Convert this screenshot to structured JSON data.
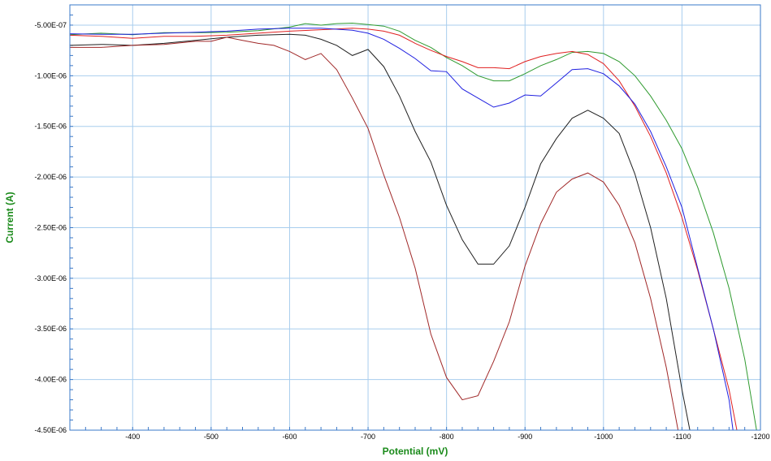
{
  "chart_data": {
    "type": "line",
    "xlabel": "Potential (mV)",
    "ylabel": "Current (A)",
    "xlim": [
      -320,
      -1200
    ],
    "ylim": [
      -4.5e-06,
      -3e-07
    ],
    "grid": true,
    "axis_title_color": "#1a8a1a",
    "x_ticks": [
      {
        "value": -400,
        "label": "-400"
      },
      {
        "value": -500,
        "label": "-500"
      },
      {
        "value": -600,
        "label": "-600"
      },
      {
        "value": -700,
        "label": "-700"
      },
      {
        "value": -800,
        "label": "-800"
      },
      {
        "value": -900,
        "label": "-900"
      },
      {
        "value": -1000,
        "label": "-1000"
      },
      {
        "value": -1100,
        "label": "-1100"
      },
      {
        "value": -1200,
        "label": "-1200"
      }
    ],
    "y_ticks": [
      {
        "value": -5e-07,
        "label": "-5.00E-07"
      },
      {
        "value": -1e-06,
        "label": "-1.00E-06"
      },
      {
        "value": -1.5e-06,
        "label": "-1.50E-06"
      },
      {
        "value": -2e-06,
        "label": "-2.00E-06"
      },
      {
        "value": -2.5e-06,
        "label": "-2.50E-06"
      },
      {
        "value": -3e-06,
        "label": "-3.00E-06"
      },
      {
        "value": -3.5e-06,
        "label": "-3.50E-06"
      },
      {
        "value": -4e-06,
        "label": "-4.00E-06"
      },
      {
        "value": -4.5e-06,
        "label": "-4.50E-06"
      }
    ],
    "series": [
      {
        "color": "#2e9a2e",
        "points": [
          [
            -320,
            -5.95e-07
          ],
          [
            -360,
            -5.8e-07
          ],
          [
            -400,
            -5.95e-07
          ],
          [
            -440,
            -5.75e-07
          ],
          [
            -480,
            -5.75e-07
          ],
          [
            -520,
            -5.7e-07
          ],
          [
            -560,
            -5.55e-07
          ],
          [
            -600,
            -5.2e-07
          ],
          [
            -620,
            -4.85e-07
          ],
          [
            -640,
            -5e-07
          ],
          [
            -660,
            -4.85e-07
          ],
          [
            -680,
            -4.8e-07
          ],
          [
            -700,
            -4.95e-07
          ],
          [
            -720,
            -5.1e-07
          ],
          [
            -740,
            -5.6e-07
          ],
          [
            -760,
            -6.5e-07
          ],
          [
            -780,
            -7.2e-07
          ],
          [
            -800,
            -8.2e-07
          ],
          [
            -820,
            -9e-07
          ],
          [
            -840,
            -1e-06
          ],
          [
            -860,
            -1.05e-06
          ],
          [
            -880,
            -1.05e-06
          ],
          [
            -900,
            -9.8e-07
          ],
          [
            -920,
            -9e-07
          ],
          [
            -940,
            -8.4e-07
          ],
          [
            -960,
            -7.7e-07
          ],
          [
            -980,
            -7.6e-07
          ],
          [
            -1000,
            -7.8e-07
          ],
          [
            -1020,
            -8.6e-07
          ],
          [
            -1040,
            -1e-06
          ],
          [
            -1060,
            -1.2e-06
          ],
          [
            -1080,
            -1.44e-06
          ],
          [
            -1100,
            -1.72e-06
          ],
          [
            -1120,
            -2.1e-06
          ],
          [
            -1140,
            -2.55e-06
          ],
          [
            -1160,
            -3.1e-06
          ],
          [
            -1180,
            -3.8e-06
          ],
          [
            -1195,
            -4.5e-06
          ]
        ]
      },
      {
        "color": "#e02020",
        "points": [
          [
            -320,
            -6e-07
          ],
          [
            -360,
            -6.1e-07
          ],
          [
            -400,
            -6.3e-07
          ],
          [
            -440,
            -6.1e-07
          ],
          [
            -480,
            -6.1e-07
          ],
          [
            -520,
            -6e-07
          ],
          [
            -560,
            -5.8e-07
          ],
          [
            -600,
            -5.6e-07
          ],
          [
            -640,
            -5.45e-07
          ],
          [
            -680,
            -5.3e-07
          ],
          [
            -700,
            -5.4e-07
          ],
          [
            -720,
            -5.6e-07
          ],
          [
            -740,
            -6e-07
          ],
          [
            -760,
            -6.8e-07
          ],
          [
            -780,
            -7.5e-07
          ],
          [
            -800,
            -8.1e-07
          ],
          [
            -820,
            -8.6e-07
          ],
          [
            -840,
            -9.2e-07
          ],
          [
            -860,
            -9.2e-07
          ],
          [
            -880,
            -9.3e-07
          ],
          [
            -900,
            -8.6e-07
          ],
          [
            -920,
            -8.1e-07
          ],
          [
            -940,
            -7.8e-07
          ],
          [
            -960,
            -7.6e-07
          ],
          [
            -980,
            -7.9e-07
          ],
          [
            -1000,
            -8.8e-07
          ],
          [
            -1020,
            -1.05e-06
          ],
          [
            -1040,
            -1.3e-06
          ],
          [
            -1060,
            -1.6e-06
          ],
          [
            -1080,
            -1.96e-06
          ],
          [
            -1100,
            -2.4e-06
          ],
          [
            -1120,
            -2.92e-06
          ],
          [
            -1140,
            -3.5e-06
          ],
          [
            -1160,
            -4.1e-06
          ],
          [
            -1170,
            -4.5e-06
          ]
        ]
      },
      {
        "color": "#2020e0",
        "points": [
          [
            -320,
            -5.85e-07
          ],
          [
            -360,
            -5.9e-07
          ],
          [
            -400,
            -5.9e-07
          ],
          [
            -440,
            -5.8e-07
          ],
          [
            -480,
            -5.7e-07
          ],
          [
            -520,
            -5.6e-07
          ],
          [
            -560,
            -5.4e-07
          ],
          [
            -600,
            -5.3e-07
          ],
          [
            -640,
            -5.3e-07
          ],
          [
            -680,
            -5.5e-07
          ],
          [
            -700,
            -5.8e-07
          ],
          [
            -720,
            -6.4e-07
          ],
          [
            -740,
            -7.3e-07
          ],
          [
            -760,
            -8.3e-07
          ],
          [
            -780,
            -9.5e-07
          ],
          [
            -800,
            -9.6e-07
          ],
          [
            -820,
            -1.13e-06
          ],
          [
            -840,
            -1.22e-06
          ],
          [
            -860,
            -1.31e-06
          ],
          [
            -880,
            -1.27e-06
          ],
          [
            -900,
            -1.19e-06
          ],
          [
            -920,
            -1.2e-06
          ],
          [
            -940,
            -1.07e-06
          ],
          [
            -960,
            -9.4e-07
          ],
          [
            -980,
            -9.3e-07
          ],
          [
            -1000,
            -9.8e-07
          ],
          [
            -1020,
            -1.1e-06
          ],
          [
            -1040,
            -1.28e-06
          ],
          [
            -1060,
            -1.55e-06
          ],
          [
            -1080,
            -1.9e-06
          ],
          [
            -1100,
            -2.3e-06
          ],
          [
            -1120,
            -2.9e-06
          ],
          [
            -1140,
            -3.5e-06
          ],
          [
            -1160,
            -4.2e-06
          ],
          [
            -1165,
            -4.5e-06
          ]
        ]
      },
      {
        "color": "#202020",
        "points": [
          [
            -320,
            -7e-07
          ],
          [
            -360,
            -6.9e-07
          ],
          [
            -400,
            -7e-07
          ],
          [
            -440,
            -6.8e-07
          ],
          [
            -480,
            -6.5e-07
          ],
          [
            -520,
            -6.2e-07
          ],
          [
            -560,
            -6e-07
          ],
          [
            -600,
            -5.9e-07
          ],
          [
            -620,
            -6e-07
          ],
          [
            -640,
            -6.4e-07
          ],
          [
            -660,
            -7e-07
          ],
          [
            -680,
            -8e-07
          ],
          [
            -700,
            -7.4e-07
          ],
          [
            -720,
            -9.1e-07
          ],
          [
            -740,
            -1.2e-06
          ],
          [
            -760,
            -1.55e-06
          ],
          [
            -780,
            -1.85e-06
          ],
          [
            -800,
            -2.28e-06
          ],
          [
            -820,
            -2.62e-06
          ],
          [
            -840,
            -2.86e-06
          ],
          [
            -860,
            -2.86e-06
          ],
          [
            -880,
            -2.68e-06
          ],
          [
            -900,
            -2.3e-06
          ],
          [
            -920,
            -1.87e-06
          ],
          [
            -940,
            -1.62e-06
          ],
          [
            -960,
            -1.42e-06
          ],
          [
            -980,
            -1.34e-06
          ],
          [
            -1000,
            -1.42e-06
          ],
          [
            -1020,
            -1.57e-06
          ],
          [
            -1040,
            -1.97e-06
          ],
          [
            -1060,
            -2.5e-06
          ],
          [
            -1080,
            -3.2e-06
          ],
          [
            -1100,
            -4.1e-06
          ],
          [
            -1110,
            -4.5e-06
          ]
        ]
      },
      {
        "color": "#a02828",
        "points": [
          [
            -320,
            -7.2e-07
          ],
          [
            -360,
            -7.2e-07
          ],
          [
            -400,
            -7e-07
          ],
          [
            -440,
            -6.9e-07
          ],
          [
            -480,
            -6.6e-07
          ],
          [
            -500,
            -6.6e-07
          ],
          [
            -520,
            -6.2e-07
          ],
          [
            -540,
            -6.5e-07
          ],
          [
            -560,
            -6.8e-07
          ],
          [
            -580,
            -7e-07
          ],
          [
            -600,
            -7.6e-07
          ],
          [
            -620,
            -8.4e-07
          ],
          [
            -640,
            -7.8e-07
          ],
          [
            -660,
            -9.4e-07
          ],
          [
            -680,
            -1.22e-06
          ],
          [
            -700,
            -1.52e-06
          ],
          [
            -720,
            -1.98e-06
          ],
          [
            -740,
            -2.4e-06
          ],
          [
            -760,
            -2.9e-06
          ],
          [
            -780,
            -3.55e-06
          ],
          [
            -800,
            -3.98e-06
          ],
          [
            -820,
            -4.2e-06
          ],
          [
            -840,
            -4.16e-06
          ],
          [
            -860,
            -3.82e-06
          ],
          [
            -880,
            -3.43e-06
          ],
          [
            -900,
            -2.88e-06
          ],
          [
            -920,
            -2.46e-06
          ],
          [
            -940,
            -2.15e-06
          ],
          [
            -960,
            -2.02e-06
          ],
          [
            -980,
            -1.96e-06
          ],
          [
            -1000,
            -2.05e-06
          ],
          [
            -1020,
            -2.28e-06
          ],
          [
            -1040,
            -2.65e-06
          ],
          [
            -1060,
            -3.2e-06
          ],
          [
            -1080,
            -3.88e-06
          ],
          [
            -1095,
            -4.5e-06
          ]
        ]
      }
    ]
  }
}
